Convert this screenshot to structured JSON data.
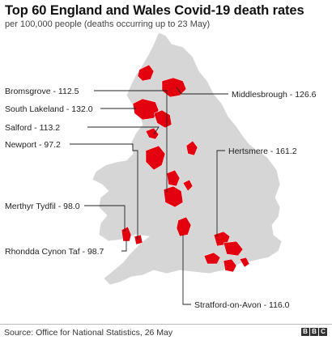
{
  "title": "Top 60 England and Wales Covid-19 death rates",
  "subtitle": "per 100,000 people (deaths occurring up to 23 May)",
  "labels": {
    "bromsgrove": "Bromsgrove - 112.5",
    "middlesbrough": "Middlesbrough - 126.6",
    "south_lakeland": "South Lakeland - 132.0",
    "salford": "Salford - 113.2",
    "newport": "Newport - 97.2",
    "hertsmere": "Hertsmere - 161.2",
    "merthyr_tydfil": "Merthyr Tydfil - 98.0",
    "rhondda_cynon_taf": "Rhondda Cynon Taf - 98.7",
    "stratford_on_avon": "Stratford-on-Avon - 116.0"
  },
  "source": "Source: Office for National Statistics, 26 May",
  "logo": [
    "B",
    "B",
    "C"
  ],
  "colors": {
    "land": "#d6d6d6",
    "highlight": "#e3000f",
    "leader": "#222222"
  }
}
